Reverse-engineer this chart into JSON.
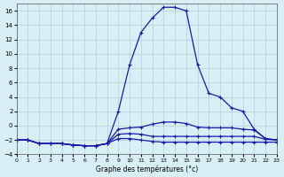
{
  "title": "Graphe des températures (°c)",
  "xlim": [
    0,
    23
  ],
  "ylim": [
    -4,
    17
  ],
  "yticks": [
    -4,
    -2,
    0,
    2,
    4,
    6,
    8,
    10,
    12,
    14,
    16
  ],
  "xticks": [
    0,
    1,
    2,
    3,
    4,
    5,
    6,
    7,
    8,
    9,
    10,
    11,
    12,
    13,
    14,
    15,
    16,
    17,
    18,
    19,
    20,
    21,
    22,
    23
  ],
  "background_color": "#d7eff5",
  "grid_color": "#b0d0da",
  "line_color": "#1a1aaa",
  "curves": [
    [
      -2.0,
      -2.0,
      -2.5,
      -2.5,
      -2.5,
      -2.7,
      -2.8,
      -2.8,
      -2.5,
      2.0,
      8.5,
      13.0,
      15.0,
      16.5,
      16.5,
      16.0,
      8.5,
      4.5,
      4.0,
      2.5,
      2.0,
      -0.5,
      -1.8,
      -2.0
    ],
    [
      -2.0,
      -2.0,
      -2.5,
      -2.5,
      -2.5,
      -2.7,
      -2.8,
      -2.8,
      -2.5,
      -0.5,
      -0.3,
      -0.2,
      0.2,
      0.5,
      0.5,
      0.3,
      -0.2,
      -0.3,
      -0.3,
      -0.3,
      -0.5,
      -0.6,
      -1.8,
      -2.0
    ],
    [
      -2.0,
      -2.0,
      -2.5,
      -2.5,
      -2.5,
      -2.7,
      -2.8,
      -2.8,
      -2.5,
      -1.2,
      -1.1,
      -1.2,
      -1.5,
      -1.5,
      -1.5,
      -1.5,
      -1.5,
      -1.5,
      -1.5,
      -1.5,
      -1.5,
      -1.5,
      -1.9,
      -2.0
    ],
    [
      -2.0,
      -2.0,
      -2.5,
      -2.5,
      -2.5,
      -2.7,
      -2.8,
      -2.8,
      -2.5,
      -1.8,
      -1.8,
      -2.0,
      -2.2,
      -2.3,
      -2.3,
      -2.3,
      -2.3,
      -2.3,
      -2.3,
      -2.3,
      -2.3,
      -2.3,
      -2.3,
      -2.3
    ]
  ]
}
